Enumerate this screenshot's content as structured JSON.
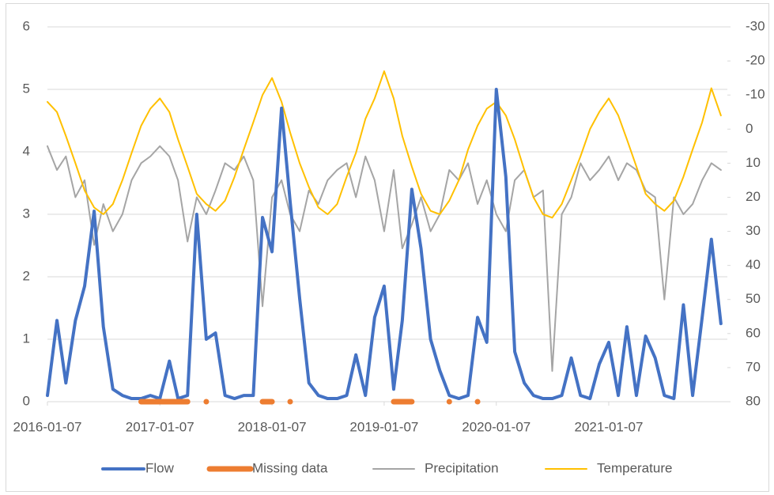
{
  "chart_data": {
    "type": "line",
    "x": [
      "2016-01-07",
      "2016-02-07",
      "2016-03-07",
      "2016-04-07",
      "2016-05-07",
      "2016-06-07",
      "2016-07-07",
      "2016-08-07",
      "2016-09-07",
      "2016-10-07",
      "2016-11-07",
      "2016-12-07",
      "2017-01-07",
      "2017-02-07",
      "2017-03-07",
      "2017-04-07",
      "2017-05-07",
      "2017-06-07",
      "2017-07-07",
      "2017-08-07",
      "2017-09-07",
      "2017-10-07",
      "2017-11-07",
      "2017-12-07",
      "2018-01-07",
      "2018-02-07",
      "2018-03-07",
      "2018-04-07",
      "2018-05-07",
      "2018-06-07",
      "2018-07-07",
      "2018-08-07",
      "2018-09-07",
      "2018-10-07",
      "2018-11-07",
      "2018-12-07",
      "2019-01-07",
      "2019-02-07",
      "2019-03-07",
      "2019-04-07",
      "2019-05-07",
      "2019-06-07",
      "2019-07-07",
      "2019-08-07",
      "2019-09-07",
      "2019-10-07",
      "2019-11-07",
      "2019-12-07",
      "2020-01-07",
      "2020-02-07",
      "2020-03-07",
      "2020-04-07",
      "2020-05-07",
      "2020-06-07",
      "2020-07-07",
      "2020-08-07",
      "2020-09-07",
      "2020-10-07",
      "2020-11-07",
      "2020-12-07",
      "2021-01-07",
      "2021-02-07",
      "2021-03-07",
      "2021-04-07",
      "2021-05-07",
      "2021-06-07",
      "2021-07-07",
      "2021-08-07",
      "2021-09-07",
      "2021-10-07",
      "2021-11-07",
      "2021-12-07",
      "2022-01-07"
    ],
    "xlim": [
      "2016-01-07",
      "2022-01-28"
    ],
    "xticks": [
      "2016-01-07",
      "2017-01-07",
      "2018-01-07",
      "2019-01-07",
      "2020-01-07",
      "2021-01-07"
    ],
    "ylim": [
      0,
      6
    ],
    "yticks": [
      0,
      1,
      2,
      3,
      4,
      5,
      6
    ],
    "y2lim": [
      80,
      -30
    ],
    "y2ticks": [
      -30,
      -20,
      -10,
      0,
      10,
      20,
      30,
      40,
      50,
      60,
      70,
      80
    ],
    "grid": true,
    "legend": "bottom",
    "series": [
      {
        "name": "Flow",
        "color": "#4472c4",
        "values": [
          0.1,
          1.3,
          0.3,
          1.3,
          1.85,
          3.05,
          1.2,
          0.2,
          0.1,
          0.05,
          0.05,
          0.1,
          0.05,
          0.65,
          0.05,
          0.1,
          3.0,
          1.0,
          1.1,
          0.1,
          0.05,
          0.1,
          0.1,
          2.95,
          2.4,
          4.7,
          3.2,
          1.65,
          0.3,
          0.1,
          0.05,
          0.05,
          0.1,
          0.75,
          0.1,
          1.35,
          1.85,
          0.2,
          1.3,
          3.4,
          2.45,
          1.0,
          0.5,
          0.1,
          0.05,
          0.1,
          1.35,
          0.95,
          5.0,
          3.6,
          0.8,
          0.3,
          0.1,
          0.05,
          0.05,
          0.1,
          0.7,
          0.1,
          0.05,
          0.6,
          0.95,
          0.1,
          1.2,
          0.1,
          1.05,
          0.7,
          0.1,
          0.05,
          1.55,
          0.1,
          1.35,
          2.6,
          1.25
        ]
      },
      {
        "name": "Missing data",
        "color": "#ed7d31",
        "values": [
          null,
          null,
          null,
          null,
          null,
          null,
          null,
          null,
          null,
          null,
          0,
          0,
          0,
          0,
          0,
          0,
          null,
          0,
          null,
          null,
          null,
          null,
          null,
          0,
          0,
          null,
          0,
          null,
          null,
          null,
          null,
          null,
          null,
          null,
          null,
          null,
          null,
          0,
          0,
          0,
          null,
          null,
          null,
          0,
          null,
          null,
          0,
          null,
          null,
          null,
          null,
          null,
          null,
          null,
          null,
          null,
          null,
          null,
          null,
          null,
          null,
          null,
          null,
          null,
          null,
          null,
          null,
          null,
          null,
          null,
          null,
          null,
          null
        ]
      },
      {
        "name": "Precipitation",
        "color": "#a5a5a5",
        "axis": "y2",
        "values": [
          5,
          12,
          8,
          20,
          15,
          34,
          22,
          30,
          25,
          15,
          10,
          8,
          5,
          8,
          15,
          33,
          20,
          25,
          18,
          10,
          12,
          8,
          15,
          52,
          20,
          15,
          25,
          30,
          18,
          22,
          15,
          12,
          10,
          20,
          8,
          15,
          30,
          12,
          35,
          28,
          20,
          30,
          25,
          12,
          15,
          10,
          22,
          15,
          25,
          30,
          15,
          12,
          20,
          18,
          71,
          25,
          20,
          10,
          15,
          12,
          8,
          15,
          10,
          12,
          18,
          20,
          50,
          20,
          25,
          22,
          15,
          10,
          12
        ]
      },
      {
        "name": "Temperature",
        "color": "#ffc000",
        "axis": "y2",
        "values": [
          -8,
          -5,
          2,
          10,
          18,
          23,
          25,
          22,
          15,
          7,
          -1,
          -6,
          -9,
          -5,
          3,
          11,
          19,
          22,
          24,
          21,
          14,
          6,
          -2,
          -10,
          -15,
          -8,
          1,
          10,
          17,
          23,
          25,
          22,
          14,
          7,
          -3,
          -9,
          -17,
          -9,
          2,
          11,
          19,
          24,
          25,
          21,
          15,
          6,
          -1,
          -6,
          -8,
          -4,
          3,
          12,
          20,
          25,
          26,
          22,
          15,
          8,
          0,
          -5,
          -9,
          -4,
          3,
          11,
          19,
          22,
          24,
          21,
          14,
          6,
          -2,
          -12,
          -4
        ]
      }
    ]
  }
}
